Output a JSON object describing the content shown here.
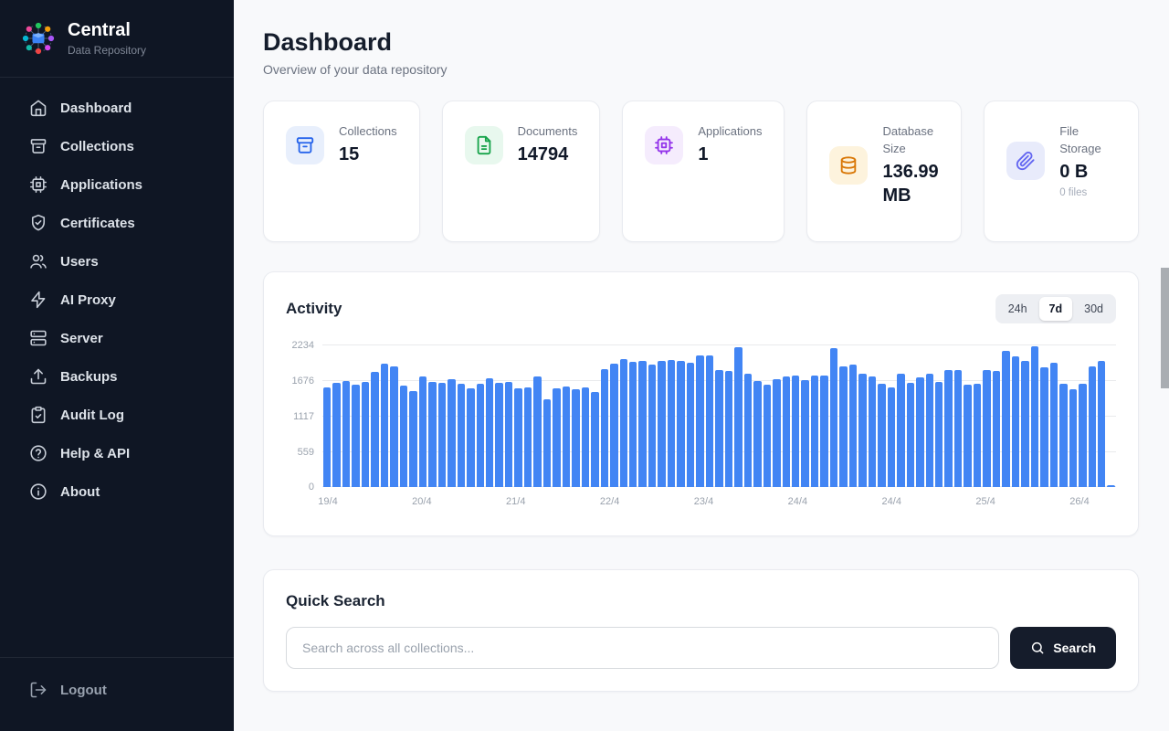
{
  "sidebar": {
    "brand": {
      "title": "Central",
      "subtitle": "Data Repository"
    },
    "items": [
      {
        "id": "dashboard",
        "label": "Dashboard",
        "icon": "home"
      },
      {
        "id": "collections",
        "label": "Collections",
        "icon": "archive"
      },
      {
        "id": "applications",
        "label": "Applications",
        "icon": "cpu"
      },
      {
        "id": "certificates",
        "label": "Certificates",
        "icon": "shield-check"
      },
      {
        "id": "users",
        "label": "Users",
        "icon": "users"
      },
      {
        "id": "ai-proxy",
        "label": "AI Proxy",
        "icon": "zap"
      },
      {
        "id": "server",
        "label": "Server",
        "icon": "server"
      },
      {
        "id": "backups",
        "label": "Backups",
        "icon": "upload"
      },
      {
        "id": "audit-log",
        "label": "Audit Log",
        "icon": "clipboard-check"
      },
      {
        "id": "help-api",
        "label": "Help & API",
        "icon": "help-circle"
      },
      {
        "id": "about",
        "label": "About",
        "icon": "info"
      }
    ],
    "logout": {
      "label": "Logout",
      "icon": "log-out"
    }
  },
  "header": {
    "title": "Dashboard",
    "subtitle": "Overview of your data repository"
  },
  "stats": [
    {
      "label": "Collections",
      "value": "15",
      "sub": "",
      "icon": "archive",
      "fg": "#2563eb",
      "bg": "#e8effc"
    },
    {
      "label": "Documents",
      "value": "14794",
      "sub": "",
      "icon": "file-text",
      "fg": "#16a34a",
      "bg": "#e8f8ee"
    },
    {
      "label": "Applications",
      "value": "1",
      "sub": "",
      "icon": "cpu",
      "fg": "#9333ea",
      "bg": "#f5ecfd"
    },
    {
      "label": "Database Size",
      "value": "136.99 MB",
      "sub": "",
      "icon": "database",
      "fg": "#d97706",
      "bg": "#fdf3dd"
    },
    {
      "label": "File Storage",
      "value": "0 B",
      "sub": "0 files",
      "icon": "paperclip",
      "fg": "#6366f1",
      "bg": "#e8ebfb"
    }
  ],
  "activity": {
    "title": "Activity",
    "ranges": [
      "24h",
      "7d",
      "30d"
    ],
    "active": "7d"
  },
  "chart_data": {
    "type": "bar",
    "title": "Activity",
    "color": "#4285f4",
    "grid": true,
    "ylim": [
      0,
      2234
    ],
    "y_ticks": [
      0,
      559,
      1117,
      1676,
      2234
    ],
    "x_ticks": [
      "19/4",
      "20/4",
      "21/4",
      "22/4",
      "23/4",
      "24/4",
      "24/4",
      "25/4",
      "26/4"
    ],
    "values": [
      1580,
      1655,
      1680,
      1625,
      1665,
      1815,
      1945,
      1905,
      1600,
      1525,
      1755,
      1660,
      1655,
      1705,
      1635,
      1565,
      1640,
      1715,
      1655,
      1670,
      1560,
      1575,
      1745,
      1390,
      1560,
      1590,
      1545,
      1580,
      1505,
      1870,
      1950,
      2030,
      1985,
      2000,
      1930,
      1995,
      2015,
      2000,
      1965,
      2080,
      2085,
      1855,
      1830,
      2210,
      1800,
      1680,
      1620,
      1700,
      1745,
      1765,
      1690,
      1760,
      1760,
      2200,
      1915,
      1930,
      1800,
      1755,
      1640,
      1580,
      1790,
      1655,
      1740,
      1795,
      1665,
      1855,
      1850,
      1620,
      1640,
      1850,
      1830,
      2150,
      2060,
      1990,
      2230,
      1890,
      1960,
      1630,
      1550,
      1640,
      1905,
      1995,
      30
    ]
  },
  "search": {
    "title": "Quick Search",
    "placeholder": "Search across all collections...",
    "button": "Search"
  }
}
